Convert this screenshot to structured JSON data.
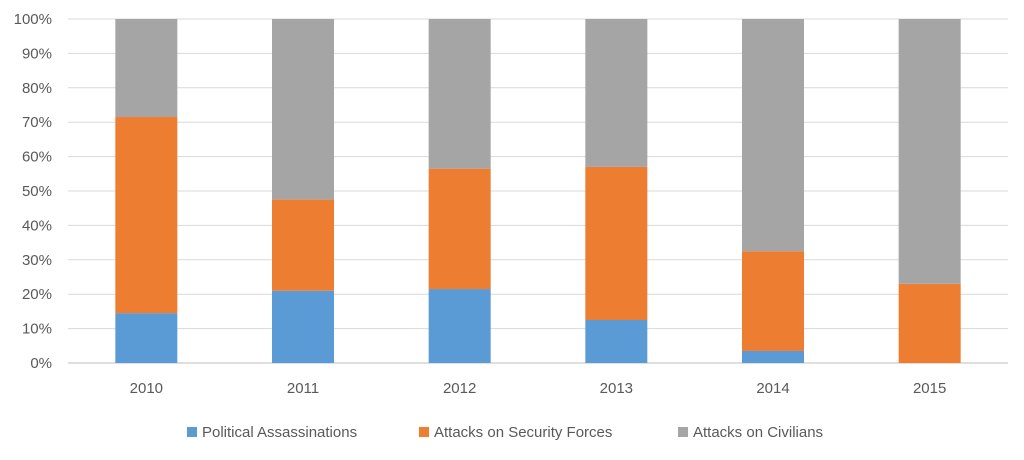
{
  "chart_data": {
    "type": "bar",
    "stacked": true,
    "percent_stacked": true,
    "title": "",
    "xlabel": "",
    "ylabel": "",
    "ylim": [
      0,
      100
    ],
    "y_ticks": [
      "0%",
      "10%",
      "20%",
      "30%",
      "40%",
      "50%",
      "60%",
      "70%",
      "80%",
      "90%",
      "100%"
    ],
    "grid": true,
    "legend_position": "bottom",
    "categories": [
      "2010",
      "2011",
      "2012",
      "2013",
      "2014",
      "2015"
    ],
    "series": [
      {
        "name": "Political Assassinations",
        "color": "#5B9BD5",
        "values": [
          14.5,
          21,
          21.5,
          12.5,
          3.5,
          0
        ]
      },
      {
        "name": "Attacks on Security Forces",
        "color": "#ED7D31",
        "values": [
          57,
          26.5,
          35,
          44.5,
          29,
          23
        ]
      },
      {
        "name": "Attacks on Civilians",
        "color": "#A5A5A5",
        "values": [
          28.5,
          52.5,
          43.5,
          43,
          67.5,
          77
        ]
      }
    ]
  }
}
